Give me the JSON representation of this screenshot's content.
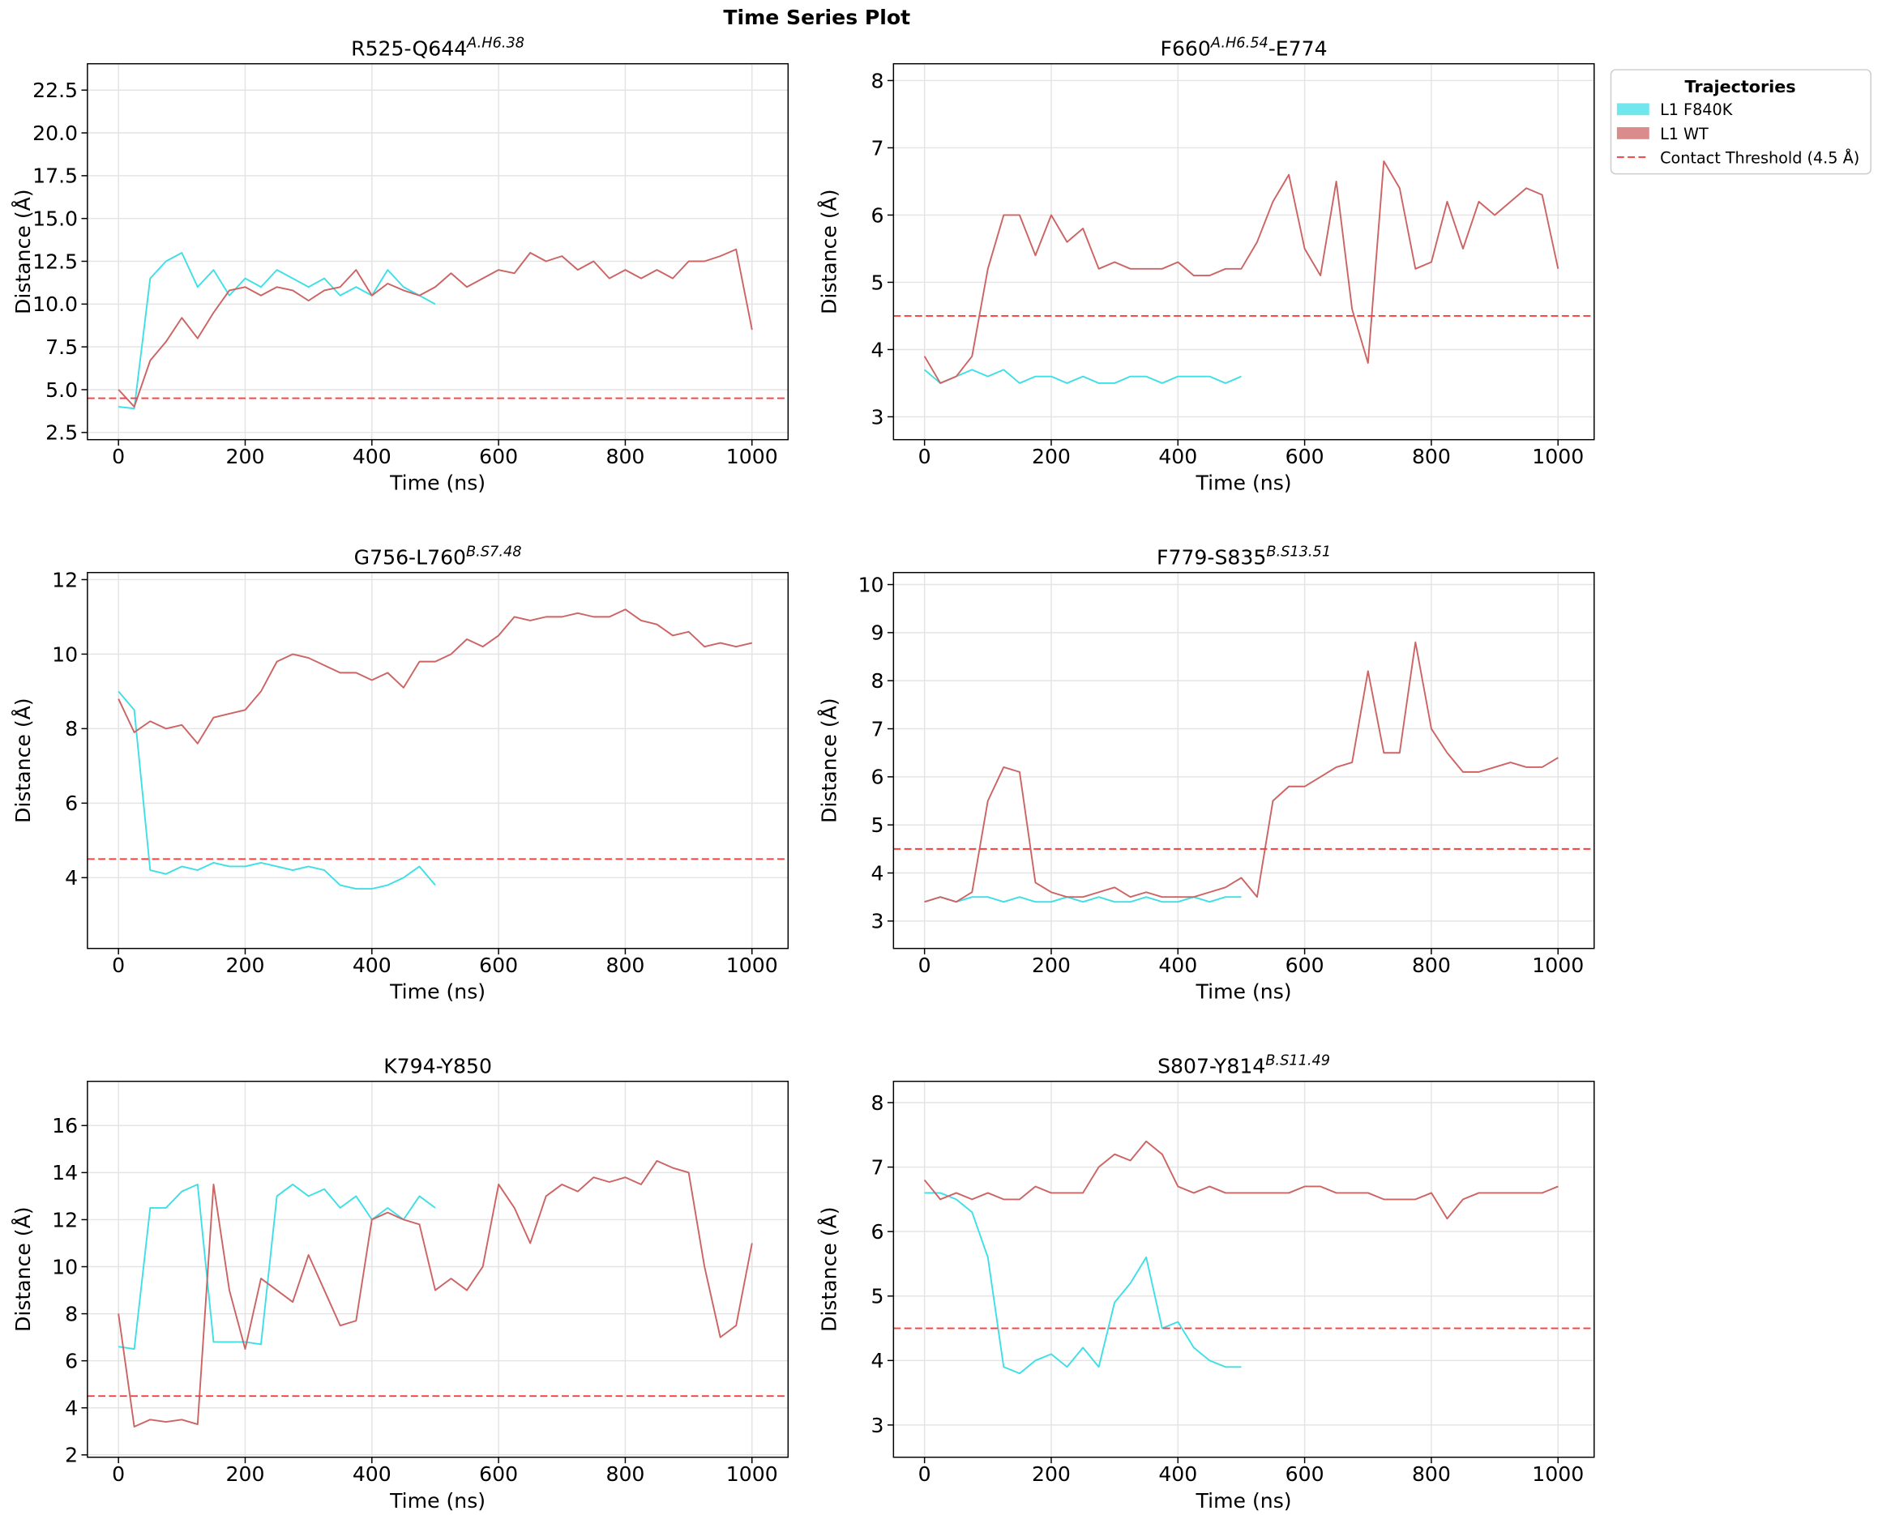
{
  "title": "Time Series Plot",
  "legend": {
    "title": "Trajectories",
    "threshold_label": "Contact Threshold (4.5 Å)"
  },
  "chart_data": [
    {
      "type": "line",
      "title_parts": [
        {
          "text": "R525-Q644"
        },
        {
          "text": "A.H6.38",
          "sup": true
        }
      ],
      "xlabel": "Time (ns)",
      "ylabel": "Distance (Å)",
      "grid": true,
      "threshold": 4.5,
      "threshold_color": "#ff3b3b",
      "xlim": [
        -49,
        1057
      ],
      "xticks": [
        0,
        200,
        400,
        600,
        800,
        1000
      ],
      "ylim": [
        2.08,
        24.04
      ],
      "yticks": [
        2.5,
        {
          "value": 5,
          "label": "5.0"
        },
        7.5,
        {
          "value": 10,
          "label": "10.0"
        },
        12.5,
        {
          "value": 15,
          "label": "15.0"
        },
        17.5,
        {
          "value": 20,
          "label": "20.0"
        },
        22.5
      ],
      "x": [
        0,
        25,
        50,
        75,
        100,
        125,
        150,
        175,
        200,
        225,
        250,
        275,
        300,
        325,
        350,
        375,
        400,
        425,
        450,
        475,
        500,
        525,
        550,
        575,
        600,
        625,
        650,
        675,
        700,
        725,
        750,
        775,
        800,
        825,
        850,
        875,
        900,
        925,
        950,
        975,
        1000
      ],
      "series": [
        {
          "name": "L1 F840K",
          "color": "#3fdfe6",
          "values": [
            4.0,
            3.9,
            11.5,
            12.5,
            13.0,
            11.0,
            12.0,
            10.5,
            11.5,
            11.0,
            12.0,
            11.5,
            11.0,
            11.5,
            10.5,
            11.0,
            10.5,
            12.0,
            11.0,
            10.5,
            10.0,
            null,
            null,
            null,
            null,
            null,
            null,
            null,
            null,
            null,
            null,
            null,
            null,
            null,
            null,
            null,
            null,
            null,
            null,
            null,
            null
          ]
        },
        {
          "name": "L1 WT",
          "color": "#cd6464",
          "values": [
            5.0,
            4.0,
            6.7,
            7.8,
            9.2,
            8.0,
            9.5,
            10.8,
            11.0,
            10.5,
            11.0,
            10.8,
            10.2,
            10.8,
            11.0,
            12.0,
            10.5,
            11.2,
            10.8,
            10.5,
            11.0,
            11.8,
            11.0,
            11.5,
            12.0,
            11.8,
            13.0,
            12.5,
            12.8,
            12.0,
            12.5,
            11.5,
            12.0,
            11.5,
            12.0,
            11.5,
            12.5,
            12.5,
            12.8,
            13.2,
            8.5
          ]
        }
      ]
    },
    {
      "type": "line",
      "title_parts": [
        {
          "text": "F660"
        },
        {
          "text": "A.H6.54",
          "sup": true
        },
        {
          "text": "-E774"
        }
      ],
      "xlabel": "Time (ns)",
      "ylabel": "Distance (Å)",
      "grid": true,
      "threshold": 4.5,
      "threshold_color": "#ff3b3b",
      "xlim": [
        -49,
        1057
      ],
      "xticks": [
        0,
        200,
        400,
        600,
        800,
        1000
      ],
      "ylim": [
        2.66,
        8.25
      ],
      "yticks": [
        3,
        4,
        5,
        6,
        7,
        8
      ],
      "x": [
        0,
        25,
        50,
        75,
        100,
        125,
        150,
        175,
        200,
        225,
        250,
        275,
        300,
        325,
        350,
        375,
        400,
        425,
        450,
        475,
        500,
        525,
        550,
        575,
        600,
        625,
        650,
        675,
        700,
        725,
        750,
        775,
        800,
        825,
        850,
        875,
        900,
        925,
        950,
        975,
        1000
      ],
      "series": [
        {
          "name": "L1 F840K",
          "color": "#3fdfe6",
          "values": [
            3.7,
            3.5,
            3.6,
            3.7,
            3.6,
            3.7,
            3.5,
            3.6,
            3.6,
            3.5,
            3.6,
            3.5,
            3.5,
            3.6,
            3.6,
            3.5,
            3.6,
            3.6,
            3.6,
            3.5,
            3.6,
            null,
            null,
            null,
            null,
            null,
            null,
            null,
            null,
            null,
            null,
            null,
            null,
            null,
            null,
            null,
            null,
            null,
            null,
            null,
            null
          ]
        },
        {
          "name": "L1 WT",
          "color": "#cd6464",
          "values": [
            3.9,
            3.5,
            3.6,
            3.9,
            5.2,
            6.0,
            6.0,
            5.4,
            6.0,
            5.6,
            5.8,
            5.2,
            5.3,
            5.2,
            5.2,
            5.2,
            5.3,
            5.1,
            5.1,
            5.2,
            5.2,
            5.6,
            6.2,
            6.6,
            5.5,
            5.1,
            6.5,
            4.6,
            3.8,
            6.8,
            6.4,
            5.2,
            5.3,
            6.2,
            5.5,
            6.2,
            6.0,
            6.2,
            6.4,
            6.3,
            5.2
          ]
        }
      ]
    },
    {
      "type": "line",
      "title_parts": [
        {
          "text": "G756-L760"
        },
        {
          "text": "B.S7.48",
          "sup": true
        }
      ],
      "xlabel": "Time (ns)",
      "ylabel": "Distance (Å)",
      "grid": true,
      "threshold": 4.5,
      "threshold_color": "#ff3b3b",
      "xlim": [
        -49,
        1057
      ],
      "xticks": [
        0,
        200,
        400,
        600,
        800,
        1000
      ],
      "ylim": [
        2.1,
        12.19
      ],
      "yticks": [
        4,
        6,
        8,
        10,
        12
      ],
      "x": [
        0,
        25,
        50,
        75,
        100,
        125,
        150,
        175,
        200,
        225,
        250,
        275,
        300,
        325,
        350,
        375,
        400,
        425,
        450,
        475,
        500,
        525,
        550,
        575,
        600,
        625,
        650,
        675,
        700,
        725,
        750,
        775,
        800,
        825,
        850,
        875,
        900,
        925,
        950,
        975,
        1000
      ],
      "series": [
        {
          "name": "L1 F840K",
          "color": "#3fdfe6",
          "values": [
            9.0,
            8.5,
            4.2,
            4.1,
            4.3,
            4.2,
            4.4,
            4.3,
            4.3,
            4.4,
            4.3,
            4.2,
            4.3,
            4.2,
            3.8,
            3.7,
            3.7,
            3.8,
            4.0,
            4.3,
            3.8,
            null,
            null,
            null,
            null,
            null,
            null,
            null,
            null,
            null,
            null,
            null,
            null,
            null,
            null,
            null,
            null,
            null,
            null,
            null,
            null
          ]
        },
        {
          "name": "L1 WT",
          "color": "#cd6464",
          "values": [
            8.8,
            7.9,
            8.2,
            8.0,
            8.1,
            7.6,
            8.3,
            8.4,
            8.5,
            9.0,
            9.8,
            10.0,
            9.9,
            9.7,
            9.5,
            9.5,
            9.3,
            9.5,
            9.1,
            9.8,
            9.8,
            10.0,
            10.4,
            10.2,
            10.5,
            11.0,
            10.9,
            11.0,
            11.0,
            11.1,
            11.0,
            11.0,
            11.2,
            10.9,
            10.8,
            10.5,
            10.6,
            10.2,
            10.3,
            10.2,
            10.3
          ]
        }
      ]
    },
    {
      "type": "line",
      "title_parts": [
        {
          "text": "F779-S835"
        },
        {
          "text": "B.S13.51",
          "sup": true
        }
      ],
      "xlabel": "Time (ns)",
      "ylabel": "Distance (Å)",
      "grid": true,
      "threshold": 4.5,
      "threshold_color": "#ff3b3b",
      "xlim": [
        -49,
        1057
      ],
      "xticks": [
        0,
        200,
        400,
        600,
        800,
        1000
      ],
      "ylim": [
        2.43,
        10.25
      ],
      "yticks": [
        3,
        4,
        5,
        6,
        7,
        8,
        9,
        10
      ],
      "x": [
        0,
        25,
        50,
        75,
        100,
        125,
        150,
        175,
        200,
        225,
        250,
        275,
        300,
        325,
        350,
        375,
        400,
        425,
        450,
        475,
        500,
        525,
        550,
        575,
        600,
        625,
        650,
        675,
        700,
        725,
        750,
        775,
        800,
        825,
        850,
        875,
        900,
        925,
        950,
        975,
        1000
      ],
      "series": [
        {
          "name": "L1 F840K",
          "color": "#3fdfe6",
          "values": [
            3.4,
            3.5,
            3.4,
            3.5,
            3.5,
            3.4,
            3.5,
            3.4,
            3.4,
            3.5,
            3.4,
            3.5,
            3.4,
            3.4,
            3.5,
            3.4,
            3.4,
            3.5,
            3.4,
            3.5,
            3.5,
            null,
            null,
            null,
            null,
            null,
            null,
            null,
            null,
            null,
            null,
            null,
            null,
            null,
            null,
            null,
            null,
            null,
            null,
            null,
            null
          ]
        },
        {
          "name": "L1 WT",
          "color": "#cd6464",
          "values": [
            3.4,
            3.5,
            3.4,
            3.6,
            5.5,
            6.2,
            6.1,
            3.8,
            3.6,
            3.5,
            3.5,
            3.6,
            3.7,
            3.5,
            3.6,
            3.5,
            3.5,
            3.5,
            3.6,
            3.7,
            3.9,
            3.5,
            5.5,
            5.8,
            5.8,
            6.0,
            6.2,
            6.3,
            8.2,
            6.5,
            6.5,
            8.8,
            7.0,
            6.5,
            6.1,
            6.1,
            6.2,
            6.3,
            6.2,
            6.2,
            6.4
          ]
        }
      ]
    },
    {
      "type": "line",
      "title_parts": [
        {
          "text": "K794-Y850"
        }
      ],
      "xlabel": "Time (ns)",
      "ylabel": "Distance (Å)",
      "grid": true,
      "threshold": 4.5,
      "threshold_color": "#ff3b3b",
      "xlim": [
        -49,
        1057
      ],
      "xticks": [
        0,
        200,
        400,
        600,
        800,
        1000
      ],
      "ylim": [
        1.9,
        17.88
      ],
      "yticks": [
        2,
        4,
        6,
        8,
        10,
        12,
        14,
        16
      ],
      "x": [
        0,
        25,
        50,
        75,
        100,
        125,
        150,
        175,
        200,
        225,
        250,
        275,
        300,
        325,
        350,
        375,
        400,
        425,
        450,
        475,
        500,
        525,
        550,
        575,
        600,
        625,
        650,
        675,
        700,
        725,
        750,
        775,
        800,
        825,
        850,
        875,
        900,
        925,
        950,
        975,
        1000
      ],
      "series": [
        {
          "name": "L1 F840K",
          "color": "#3fdfe6",
          "values": [
            6.6,
            6.5,
            12.5,
            12.5,
            13.2,
            13.5,
            6.8,
            6.8,
            6.8,
            6.7,
            13.0,
            13.5,
            13.0,
            13.3,
            12.5,
            13.0,
            12.0,
            12.5,
            12.0,
            13.0,
            12.5,
            null,
            null,
            null,
            null,
            null,
            null,
            null,
            null,
            null,
            null,
            null,
            null,
            null,
            null,
            null,
            null,
            null,
            null,
            null,
            null
          ]
        },
        {
          "name": "L1 WT",
          "color": "#cd6464",
          "values": [
            8.0,
            3.2,
            3.5,
            3.4,
            3.5,
            3.3,
            13.5,
            9.0,
            6.5,
            9.5,
            9.0,
            8.5,
            10.5,
            9.0,
            7.5,
            7.7,
            12.0,
            12.3,
            12.0,
            11.8,
            9.0,
            9.5,
            9.0,
            10.0,
            13.5,
            12.5,
            11.0,
            13.0,
            13.5,
            13.2,
            13.8,
            13.6,
            13.8,
            13.5,
            14.5,
            14.2,
            14.0,
            10.0,
            7.0,
            7.5,
            11.0
          ]
        }
      ]
    },
    {
      "type": "line",
      "title_parts": [
        {
          "text": "S807-Y814"
        },
        {
          "text": "B.S11.49",
          "sup": true
        }
      ],
      "xlabel": "Time (ns)",
      "ylabel": "Distance (Å)",
      "grid": true,
      "threshold": 4.5,
      "threshold_color": "#ff3b3b",
      "xlim": [
        -49,
        1057
      ],
      "xticks": [
        0,
        200,
        400,
        600,
        800,
        1000
      ],
      "ylim": [
        2.5,
        8.33
      ],
      "yticks": [
        3,
        4,
        5,
        6,
        7,
        8
      ],
      "x": [
        0,
        25,
        50,
        75,
        100,
        125,
        150,
        175,
        200,
        225,
        250,
        275,
        300,
        325,
        350,
        375,
        400,
        425,
        450,
        475,
        500,
        525,
        550,
        575,
        600,
        625,
        650,
        675,
        700,
        725,
        750,
        775,
        800,
        825,
        850,
        875,
        900,
        925,
        950,
        975,
        1000
      ],
      "series": [
        {
          "name": "L1 F840K",
          "color": "#3fdfe6",
          "values": [
            6.6,
            6.6,
            6.5,
            6.3,
            5.6,
            3.9,
            3.8,
            4.0,
            4.1,
            3.9,
            4.2,
            3.9,
            4.9,
            5.2,
            5.6,
            4.5,
            4.6,
            4.2,
            4.0,
            3.9,
            3.9,
            null,
            null,
            null,
            null,
            null,
            null,
            null,
            null,
            null,
            null,
            null,
            null,
            null,
            null,
            null,
            null,
            null,
            null,
            null,
            null
          ]
        },
        {
          "name": "L1 WT",
          "color": "#cd6464",
          "values": [
            6.8,
            6.5,
            6.6,
            6.5,
            6.6,
            6.5,
            6.5,
            6.7,
            6.6,
            6.6,
            6.6,
            7.0,
            7.2,
            7.1,
            7.4,
            7.2,
            6.7,
            6.6,
            6.7,
            6.6,
            6.6,
            6.6,
            6.6,
            6.6,
            6.7,
            6.7,
            6.6,
            6.6,
            6.6,
            6.5,
            6.5,
            6.5,
            6.6,
            6.2,
            6.5,
            6.6,
            6.6,
            6.6,
            6.6,
            6.6,
            6.7
          ]
        }
      ]
    }
  ]
}
